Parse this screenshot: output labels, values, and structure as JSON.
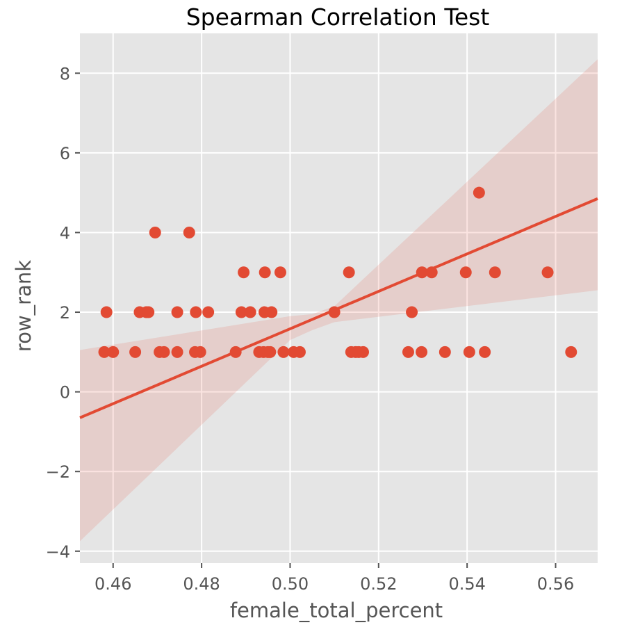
{
  "chart_data": {
    "type": "scatter",
    "title": "Spearman Correlation Test",
    "xlabel": "female_total_percent",
    "ylabel": "row_rank",
    "xlim": [
      0.4525,
      0.5695
    ],
    "ylim": [
      -4.3,
      9.0
    ],
    "xticks": [
      0.46,
      0.48,
      0.5,
      0.52,
      0.54,
      0.56
    ],
    "xtick_labels": [
      "0.46",
      "0.48",
      "0.50",
      "0.52",
      "0.54",
      "0.56"
    ],
    "yticks": [
      -4,
      -2,
      0,
      2,
      4,
      6,
      8
    ],
    "ytick_labels": [
      "−4",
      "−2",
      "0",
      "2",
      "4",
      "6",
      "8"
    ],
    "grid": true,
    "points": [
      {
        "x": 0.458,
        "y": 1
      },
      {
        "x": 0.46,
        "y": 1
      },
      {
        "x": 0.4585,
        "y": 2
      },
      {
        "x": 0.465,
        "y": 1
      },
      {
        "x": 0.466,
        "y": 2
      },
      {
        "x": 0.4675,
        "y": 2
      },
      {
        "x": 0.468,
        "y": 2
      },
      {
        "x": 0.4695,
        "y": 4
      },
      {
        "x": 0.4705,
        "y": 1
      },
      {
        "x": 0.4715,
        "y": 1
      },
      {
        "x": 0.4745,
        "y": 1
      },
      {
        "x": 0.4745,
        "y": 2
      },
      {
        "x": 0.4772,
        "y": 4
      },
      {
        "x": 0.4785,
        "y": 1
      },
      {
        "x": 0.4787,
        "y": 2
      },
      {
        "x": 0.4797,
        "y": 1
      },
      {
        "x": 0.4815,
        "y": 2
      },
      {
        "x": 0.4877,
        "y": 1
      },
      {
        "x": 0.489,
        "y": 2
      },
      {
        "x": 0.4895,
        "y": 3
      },
      {
        "x": 0.491,
        "y": 2
      },
      {
        "x": 0.493,
        "y": 1
      },
      {
        "x": 0.494,
        "y": 1
      },
      {
        "x": 0.4942,
        "y": 2
      },
      {
        "x": 0.4943,
        "y": 3
      },
      {
        "x": 0.495,
        "y": 1
      },
      {
        "x": 0.4955,
        "y": 1
      },
      {
        "x": 0.4958,
        "y": 2
      },
      {
        "x": 0.4978,
        "y": 3
      },
      {
        "x": 0.4985,
        "y": 1
      },
      {
        "x": 0.5008,
        "y": 1
      },
      {
        "x": 0.5022,
        "y": 1
      },
      {
        "x": 0.51,
        "y": 2
      },
      {
        "x": 0.5133,
        "y": 3
      },
      {
        "x": 0.5138,
        "y": 1
      },
      {
        "x": 0.5148,
        "y": 1
      },
      {
        "x": 0.5155,
        "y": 1
      },
      {
        "x": 0.5165,
        "y": 1
      },
      {
        "x": 0.5267,
        "y": 1
      },
      {
        "x": 0.5275,
        "y": 2
      },
      {
        "x": 0.5297,
        "y": 1
      },
      {
        "x": 0.5298,
        "y": 3
      },
      {
        "x": 0.532,
        "y": 3
      },
      {
        "x": 0.535,
        "y": 1
      },
      {
        "x": 0.5397,
        "y": 3
      },
      {
        "x": 0.5405,
        "y": 1
      },
      {
        "x": 0.5427,
        "y": 5
      },
      {
        "x": 0.544,
        "y": 1
      },
      {
        "x": 0.5463,
        "y": 3
      },
      {
        "x": 0.5582,
        "y": 3
      },
      {
        "x": 0.5635,
        "y": 1
      }
    ],
    "fit_line": {
      "x": [
        0.4525,
        0.5695
      ],
      "y": [
        -0.65,
        4.85
      ]
    },
    "confidence_band": [
      {
        "x": 0.4525,
        "lower": -3.75,
        "upper": 1.05
      },
      {
        "x": 0.5,
        "lower": 1.3,
        "upper": 1.9
      },
      {
        "x": 0.505,
        "lower": 1.55,
        "upper": 1.95
      },
      {
        "x": 0.51,
        "lower": 1.75,
        "upper": 2.15
      },
      {
        "x": 0.5695,
        "lower": 2.55,
        "upper": 8.35
      }
    ],
    "colors": {
      "points": "#e24a33",
      "line": "#e24a33",
      "band": "#e24a33",
      "plot_background": "#e5e5e5",
      "grid": "#ffffff",
      "tick_text": "#555555",
      "label_text": "#555555",
      "title_text": "#000000"
    }
  }
}
